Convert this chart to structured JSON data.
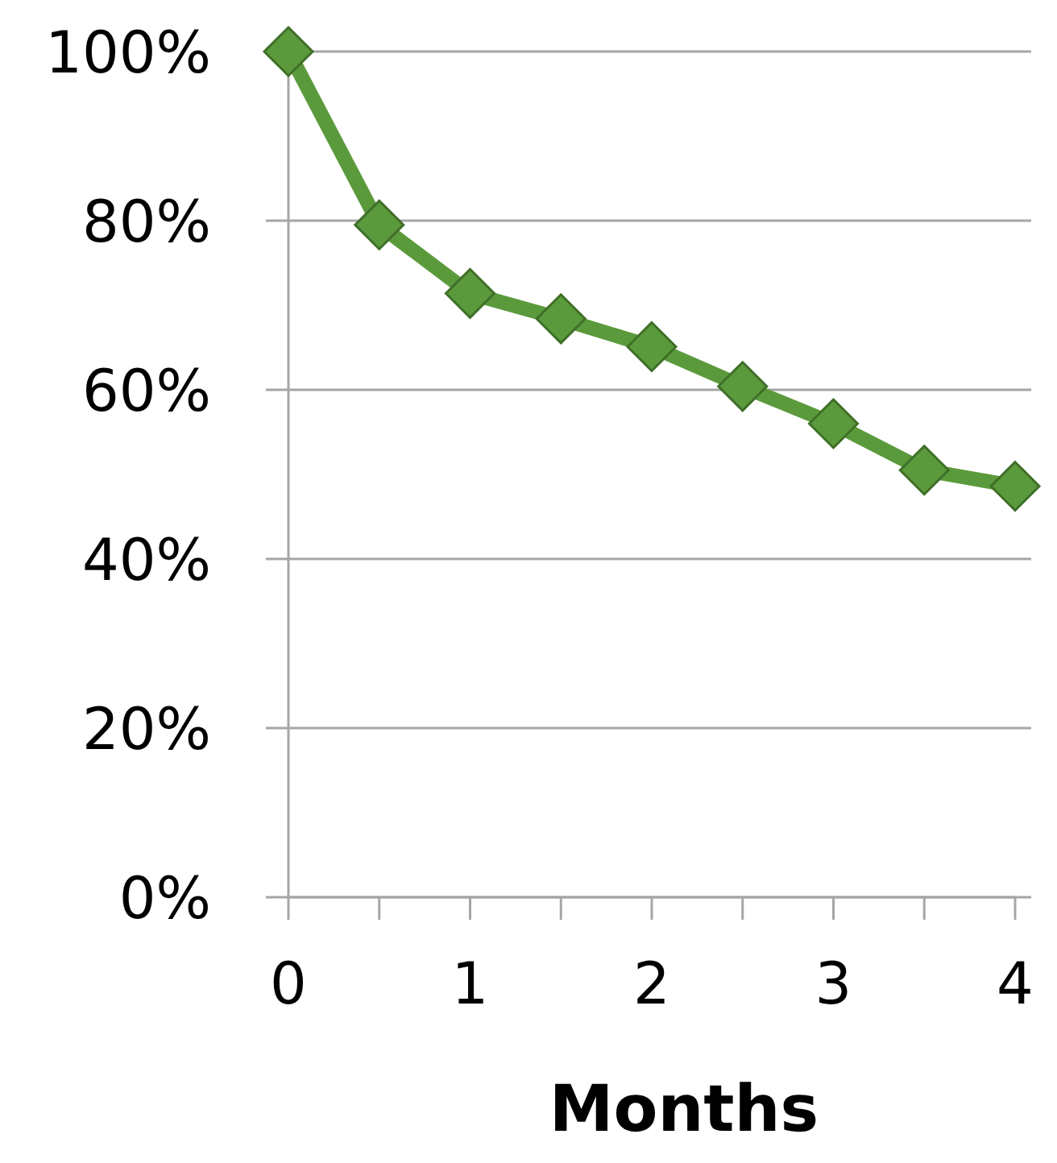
{
  "chart_data": {
    "type": "line",
    "xlabel": "Months",
    "x": [
      0,
      0.5,
      1,
      1.5,
      2,
      2.5,
      3,
      3.5,
      4
    ],
    "series": [
      {
        "color": "#5b9a3c",
        "values": [
          100,
          79.5,
          71.4,
          68.4,
          65.1,
          60.4,
          56,
          50.5,
          48.6
        ]
      }
    ],
    "xlim": [
      0,
      4
    ],
    "xticks": [
      0,
      {
        "value": 0.5,
        "label": null
      },
      1,
      {
        "value": 1.5,
        "label": null
      },
      2,
      {
        "value": 2.5,
        "label": null
      },
      3,
      {
        "value": 3.5,
        "label": null
      },
      4
    ],
    "ylim": [
      0,
      100
    ],
    "yticks": [
      {
        "value": 0,
        "label": "0%"
      },
      {
        "value": 20,
        "label": "20%"
      },
      {
        "value": 40,
        "label": "40%"
      },
      {
        "value": 60,
        "label": "60%"
      },
      {
        "value": 80,
        "label": "80%"
      },
      {
        "value": 100,
        "label": "100%"
      }
    ],
    "grid": "y",
    "marker": "diamond",
    "line_style": "solid"
  }
}
